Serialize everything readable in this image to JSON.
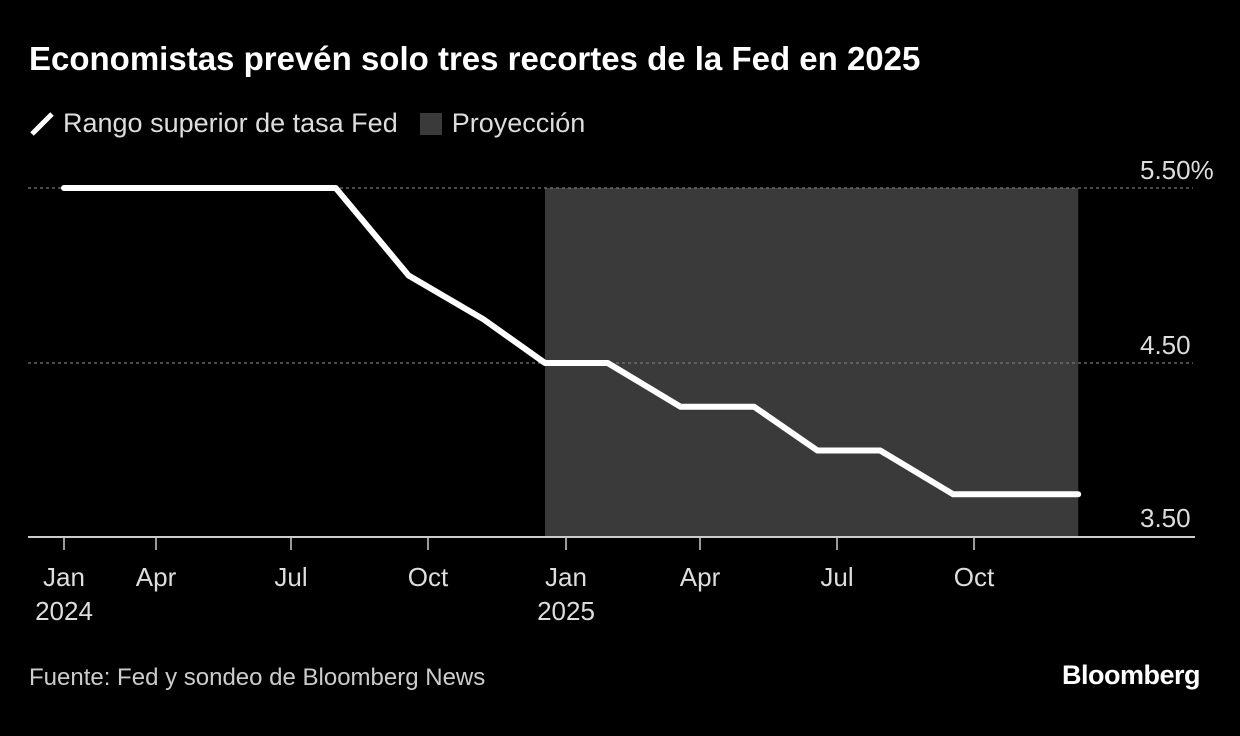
{
  "chart_data": {
    "type": "line",
    "title": "Economistas prevén solo tres recortes de la Fed en 2025",
    "legend": [
      {
        "label": "Rango superior de tasa Fed",
        "kind": "line",
        "color": "#ffffff"
      },
      {
        "label": "Proyección",
        "kind": "area",
        "color": "#3a3a3a"
      }
    ],
    "legend_placement": "top-left",
    "series": [
      {
        "name": "Rango superior de tasa Fed",
        "color": "#ffffff",
        "points": [
          [
            "2024-01-01",
            5.5
          ],
          [
            "2024-07-31",
            5.5
          ],
          [
            "2024-09-18",
            5.0
          ],
          [
            "2024-11-07",
            4.75
          ],
          [
            "2024-12-18",
            4.5
          ],
          [
            "2025-01-29",
            4.5
          ],
          [
            "2025-03-19",
            4.25
          ],
          [
            "2025-05-07",
            4.25
          ],
          [
            "2025-06-18",
            4.0
          ],
          [
            "2025-07-30",
            4.0
          ],
          [
            "2025-09-17",
            3.75
          ],
          [
            "2025-12-10",
            3.75
          ]
        ]
      }
    ],
    "projection_range": [
      "2024-12-18",
      "2025-12-10"
    ],
    "x_ticks": [
      {
        "date": "2024-01-01",
        "label": "Jan",
        "sublabel": "2024"
      },
      {
        "date": "2024-04-01",
        "label": "Apr",
        "sublabel": ""
      },
      {
        "date": "2024-07-01",
        "label": "Jul",
        "sublabel": ""
      },
      {
        "date": "2024-10-01",
        "label": "Oct",
        "sublabel": ""
      },
      {
        "date": "2025-01-01",
        "label": "Jan",
        "sublabel": "2025"
      },
      {
        "date": "2025-04-01",
        "label": "Apr",
        "sublabel": ""
      },
      {
        "date": "2025-07-01",
        "label": "Jul",
        "sublabel": ""
      },
      {
        "date": "2025-10-01",
        "label": "Oct",
        "sublabel": ""
      }
    ],
    "y_ticks": [
      {
        "value": 5.5,
        "label": "5.50%",
        "grid": true
      },
      {
        "value": 4.5,
        "label": "4.50",
        "grid": true
      },
      {
        "value": 3.5,
        "label": "3.50",
        "grid": false
      }
    ],
    "ylim": [
      3.5,
      5.5
    ],
    "colors": {
      "background": "#000000",
      "line": "#ffffff",
      "projection": "#3a3a3a",
      "grid": "#777777"
    }
  },
  "source": "Fuente: Fed y sondeo de Bloomberg News",
  "logo": "Bloomberg"
}
